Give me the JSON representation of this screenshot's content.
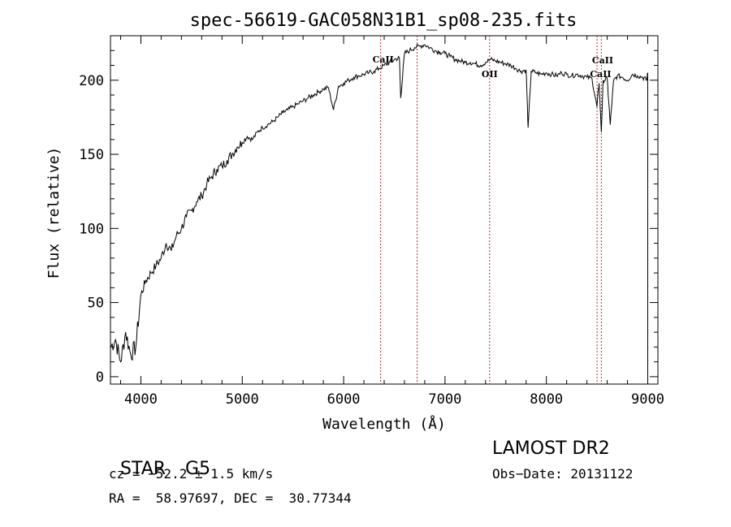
{
  "chart_data": {
    "type": "line",
    "title": "spec-56619-GAC058N31B1_sp08-235.fits",
    "xlabel": "Wavelength (Å)",
    "ylabel": "Flux (relative)",
    "xlim": [
      3700,
      9100
    ],
    "ylim": [
      -5,
      230
    ],
    "xticks": [
      "4000",
      "5000",
      "6000",
      "7000",
      "8000",
      "9000"
    ],
    "yticks": [
      "0",
      "50",
      "100",
      "150",
      "200"
    ],
    "grid": false,
    "series": [
      {
        "x": [
          3700,
          3750,
          3800,
          3850,
          3900,
          3950,
          4000,
          4050,
          4100,
          4150,
          4200,
          4250,
          4300,
          4350,
          4400,
          4450,
          4500,
          4550,
          4600,
          4650,
          4700,
          4750,
          4800,
          4850,
          4900,
          4950,
          5000,
          5050,
          5100,
          5150,
          5200,
          5250,
          5300,
          5350,
          5400,
          5450,
          5500,
          5550,
          5600,
          5650,
          5700,
          5750,
          5800,
          5850,
          5900,
          5950,
          6000,
          6050,
          6100,
          6150,
          6200,
          6250,
          6300,
          6350,
          6400,
          6450,
          6500,
          6550,
          6563,
          6600,
          6650,
          6700,
          6750,
          6800,
          6850,
          6900,
          6950,
          7000,
          7050,
          7100,
          7150,
          7200,
          7250,
          7300,
          7350,
          7400,
          7450,
          7500,
          7550,
          7600,
          7650,
          7700,
          7750,
          7800,
          7820,
          7850,
          7900,
          7950,
          8000,
          8050,
          8100,
          8150,
          8200,
          8250,
          8300,
          8350,
          8400,
          8450,
          8498,
          8520,
          8542,
          8560,
          8600,
          8630,
          8662,
          8700,
          8750,
          8800,
          8850,
          8900,
          8950,
          8990,
          9000
        ],
        "y": [
          20,
          25,
          10,
          30,
          15,
          20,
          55,
          65,
          70,
          75,
          80,
          90,
          85,
          95,
          100,
          108,
          112,
          118,
          122,
          130,
          135,
          140,
          142,
          146,
          150,
          155,
          158,
          162,
          160,
          165,
          168,
          170,
          172,
          175,
          178,
          180,
          182,
          184,
          186,
          188,
          190,
          192,
          194,
          195,
          180,
          196,
          198,
          200,
          202,
          203,
          204,
          205,
          206,
          208,
          210,
          212,
          214,
          215,
          188,
          218,
          220,
          222,
          223,
          224,
          222,
          220,
          219,
          218,
          216,
          214,
          213,
          212,
          212,
          211,
          210,
          212,
          214,
          213,
          212,
          211,
          210,
          208,
          206,
          207,
          168,
          206,
          205,
          204,
          205,
          204,
          203,
          205,
          204,
          203,
          204,
          203,
          202,
          201,
          182,
          198,
          165,
          200,
          201,
          170,
          199,
          203,
          202,
          200,
          204,
          203,
          202,
          200,
          205
        ]
      }
    ],
    "annotations": [
      "CaII",
      "OII",
      "CaII",
      "CaII"
    ]
  },
  "info": {
    "class_label": "STAR",
    "subclass_label": "G5",
    "survey": "LAMOST DR2",
    "cz": "cz = −52.2 ± 1.5 km/s",
    "obs_date": "Obs−Date: 20131122",
    "coords": "RA =  58.97697, DEC =  30.77344"
  }
}
